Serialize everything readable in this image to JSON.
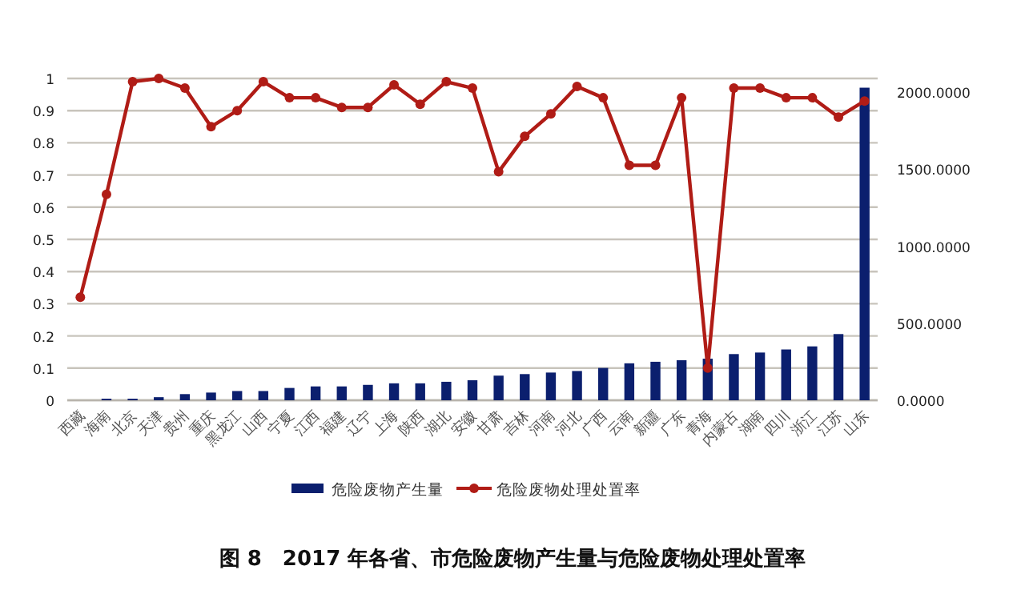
{
  "chart_data": {
    "type": "bar",
    "title": "图 8　2017 年各省、市危险废物产生量与危险废物处理处置率",
    "categories": [
      "西藏",
      "海南",
      "北京",
      "天津",
      "贵州",
      "重庆",
      "黑龙江",
      "山西",
      "宁夏",
      "江西",
      "福建",
      "辽宁",
      "上海",
      "陕西",
      "湖北",
      "安徽",
      "甘肃",
      "吉林",
      "河南",
      "河北",
      "广西",
      "云南",
      "新疆",
      "广东",
      "青海",
      "内蒙古",
      "湖南",
      "四川",
      "浙江",
      "江苏",
      "山东"
    ],
    "series": [
      {
        "name": "危险废物产生量",
        "axis": "y2",
        "color": "#0b1f6e",
        "values": [
          0,
          10,
          10,
          20,
          40,
          50,
          60,
          60,
          80,
          90,
          90,
          100,
          110,
          110,
          120,
          130,
          160,
          170,
          180,
          190,
          210,
          240,
          250,
          260,
          270,
          300,
          310,
          330,
          350,
          430,
          2030
        ]
      },
      {
        "name": "危险废物处理处置率",
        "type": "line",
        "color": "#b01c16",
        "marker": "circle",
        "values": [
          0.32,
          0.64,
          0.99,
          1.0,
          0.97,
          0.85,
          0.9,
          0.99,
          0.94,
          0.94,
          0.91,
          0.91,
          0.98,
          0.92,
          0.99,
          0.97,
          0.71,
          0.82,
          0.89,
          0.975,
          0.94,
          0.73,
          0.73,
          0.94,
          0.1,
          0.97,
          0.97,
          0.94,
          0.94,
          0.88,
          0.93
        ]
      }
    ],
    "ylim": [
      0,
      1
    ],
    "yticks": [
      0,
      0.1,
      0.2,
      0.3,
      0.4,
      0.5,
      0.6,
      0.7,
      0.8,
      0.9,
      1
    ],
    "y2lim": [
      0,
      2090
    ],
    "y2ticks": [
      {
        "value": 0,
        "label": "0.0000"
      },
      {
        "value": 500,
        "label": "500.0000"
      },
      {
        "value": 1000,
        "label": "1000.0000"
      },
      {
        "value": 1500,
        "label": "1500.0000"
      },
      {
        "value": 2000,
        "label": "2000.0000"
      }
    ],
    "grid": "y",
    "legend": "bottom"
  }
}
